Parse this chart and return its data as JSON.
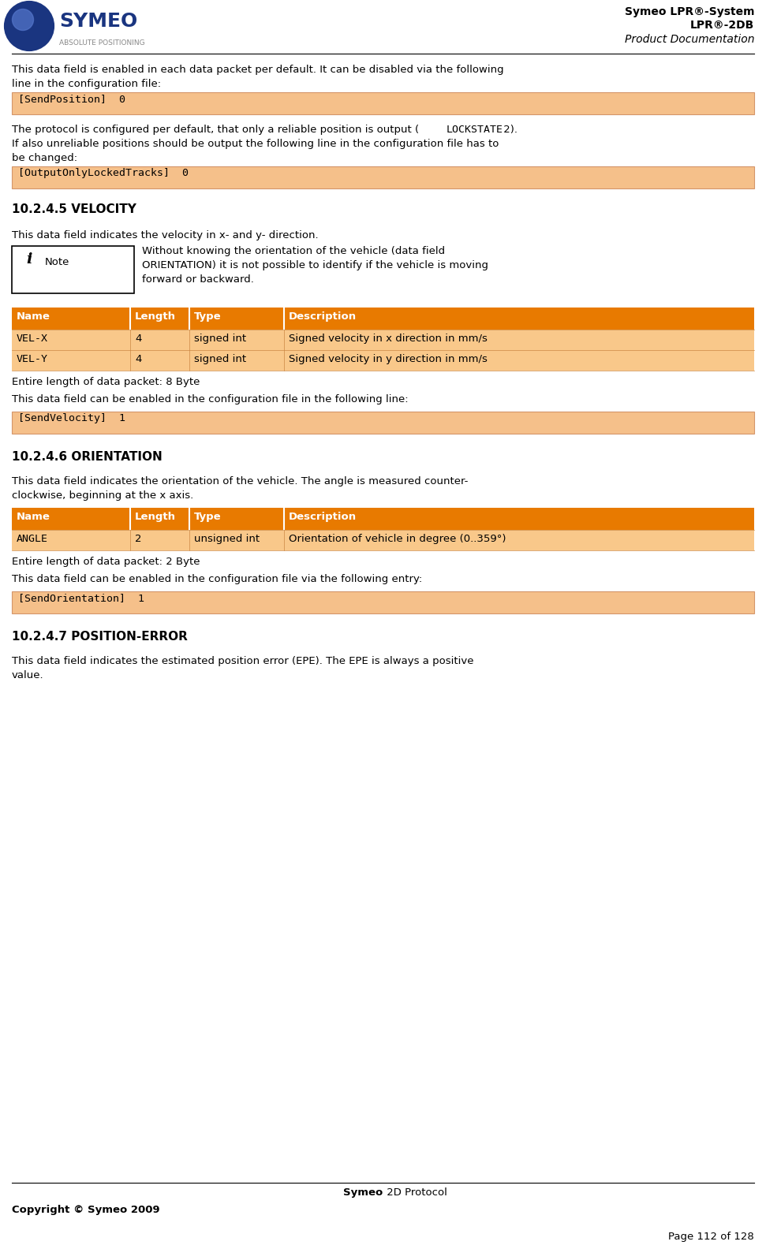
{
  "page_width": 9.71,
  "page_height": 15.98,
  "bg_color": "#ffffff",
  "orange_bg": "#f5c08a",
  "orange_table_header": "#e87a00",
  "table_row_light": "#f9c88a",
  "header_right_text_1": "Symeo LPR®-System",
  "header_right_text_2": "LPR®-2DB",
  "header_right_text_3": "Product Documentation",
  "top_intro_text_1": "This data field is enabled in each data packet per default. It can be disabled via the following",
  "top_intro_text_2": "line in the configuration file:",
  "code_block_1": "[SendPosition]  0",
  "para2_line1": "The protocol is configured per default, that only a reliable position is output (",
  "para2_lockstate": "LOCKSTATE",
  "para2_after_lockstate": " 2).",
  "para2_line2": "If also unreliable positions should be output the following line in the configuration file has to",
  "para2_line3": "be changed:",
  "code_block_2": "[OutputOnlyLockedTracks]  0",
  "section_velocity_title": "10.2.4.5 VELOCITY",
  "velocity_intro": "This data field indicates the velocity in x- and y- direction.",
  "note_text_1": "Without knowing the orientation of the vehicle (data field",
  "note_text_2": "ORIENTATION) it is not possible to identify if the vehicle is moving",
  "note_text_3": "forward or backward.",
  "velocity_table_headers": [
    "Name",
    "Length",
    "Type",
    "Description"
  ],
  "velocity_table_rows": [
    [
      "VEL-X",
      "4",
      "signed int",
      "Signed velocity in x direction in mm/s"
    ],
    [
      "VEL-Y",
      "4",
      "signed int",
      "Signed velocity in y direction in mm/s"
    ]
  ],
  "velocity_packet_length": "Entire length of data packet: 8 Byte",
  "velocity_config_intro": "This data field can be enabled in the configuration file in the following line:",
  "code_block_3": "[SendVelocity]  1",
  "section_orientation_title": "10.2.4.6 ORIENTATION",
  "orientation_intro_1": "This data field indicates the orientation of the vehicle. The angle is measured counter-",
  "orientation_intro_2": "clockwise, beginning at the x axis.",
  "orientation_table_headers": [
    "Name",
    "Length",
    "Type",
    "Description"
  ],
  "orientation_table_rows": [
    [
      "ANGLE",
      "2",
      "unsigned int",
      "Orientation of vehicle in degree (0..359°)"
    ]
  ],
  "orientation_packet_length": "Entire length of data packet: 2 Byte",
  "orientation_config_intro": "This data field can be enabled in the configuration file via the following entry:",
  "code_block_4": "[SendOrientation]  1",
  "section_poserror_title": "10.2.4.7 POSITION-ERROR",
  "poserror_intro_1": "This data field indicates the estimated position error (EPE). The EPE is always a positive",
  "poserror_intro_2": "value.",
  "footer_symeo": "Symeo",
  "footer_rest": " 2D Protocol",
  "footer_left": "Copyright © Symeo 2009",
  "footer_right": "Page 112 of 128"
}
